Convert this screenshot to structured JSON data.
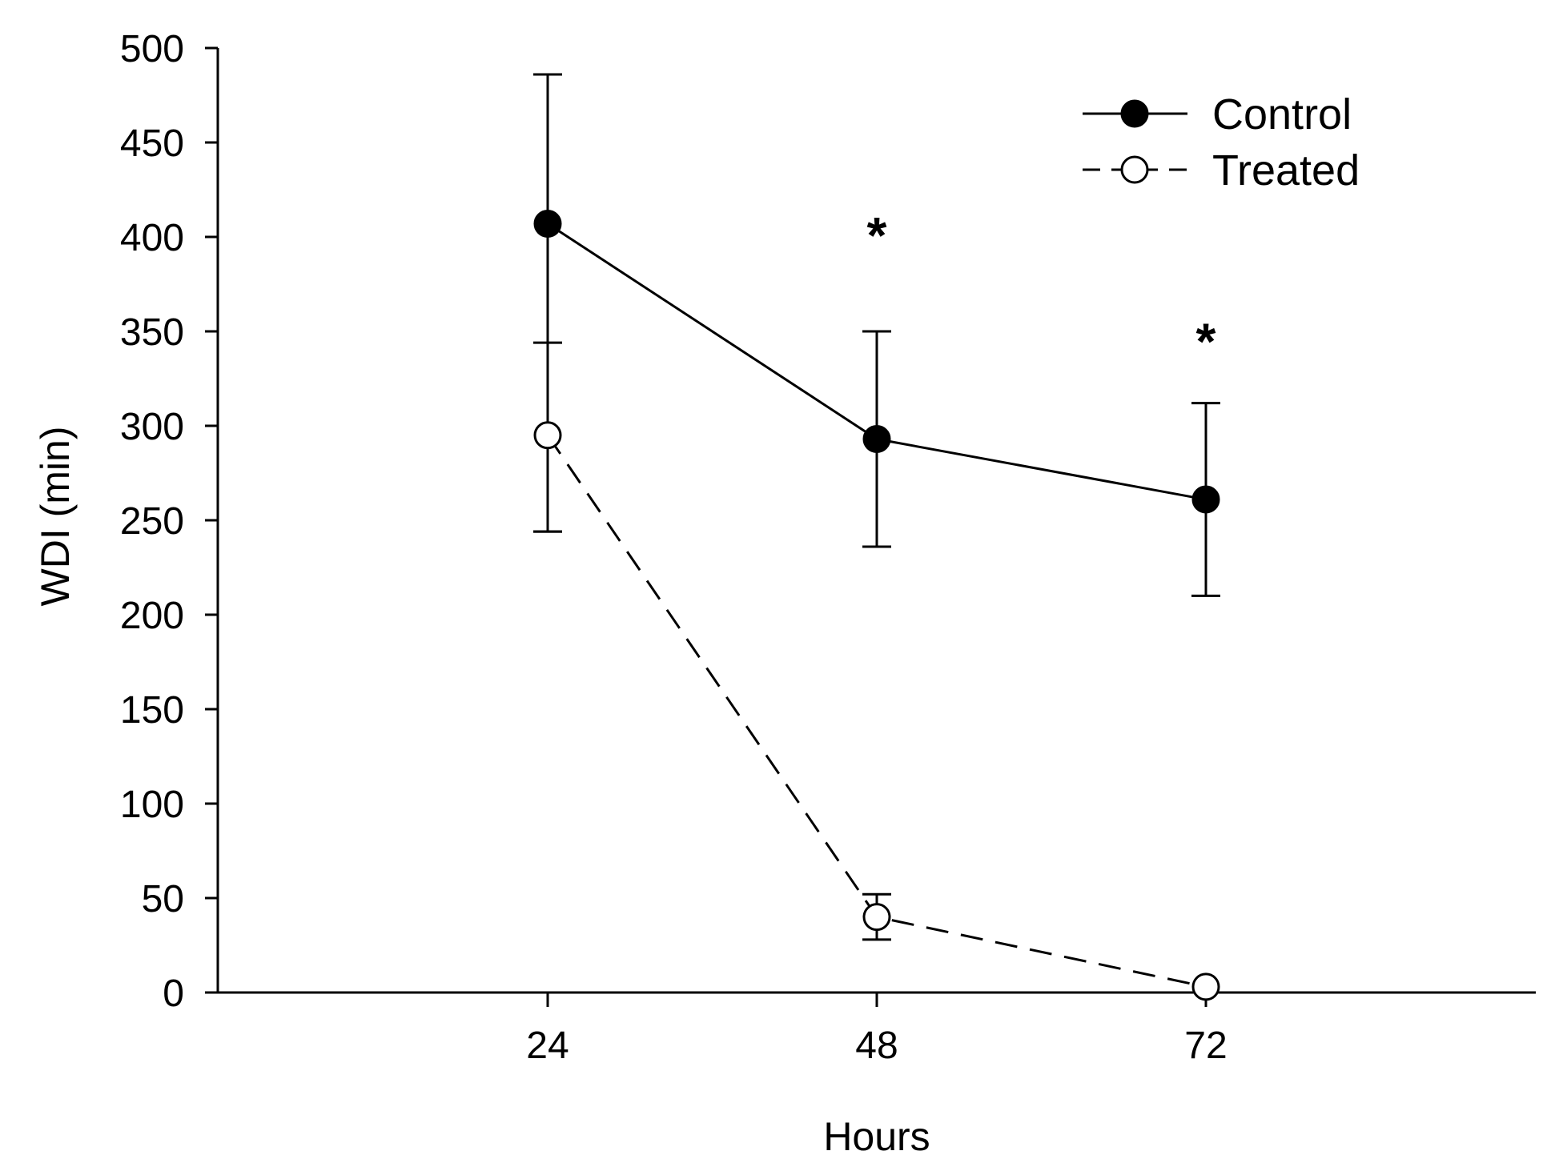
{
  "chart_data": {
    "type": "line",
    "title": "",
    "xlabel": "Hours",
    "ylabel": "WDI (min)",
    "x": [
      24,
      48,
      72
    ],
    "x_ticks": [
      "24",
      "48",
      "72"
    ],
    "y_ticks": [
      "0",
      "50",
      "100",
      "150",
      "200",
      "250",
      "300",
      "350",
      "400",
      "450",
      "500"
    ],
    "ylim": [
      0,
      500
    ],
    "series": [
      {
        "name": "Control",
        "marker": "filled-circle",
        "line": "solid",
        "values": [
          407,
          293,
          261
        ],
        "error_low": [
          244,
          236,
          210
        ],
        "error_high": [
          486,
          350,
          312
        ]
      },
      {
        "name": "Treated",
        "marker": "open-circle",
        "line": "dashed",
        "values": [
          295,
          40,
          3
        ],
        "error_low": [
          244,
          28,
          3
        ],
        "error_high": [
          344,
          52,
          3
        ]
      }
    ],
    "annotations": [
      {
        "text": "*",
        "x": 48,
        "y": 405
      },
      {
        "text": "*",
        "x": 72,
        "y": 349
      }
    ],
    "legend": {
      "position": "top-right",
      "entries": [
        "Control",
        "Treated"
      ]
    }
  }
}
